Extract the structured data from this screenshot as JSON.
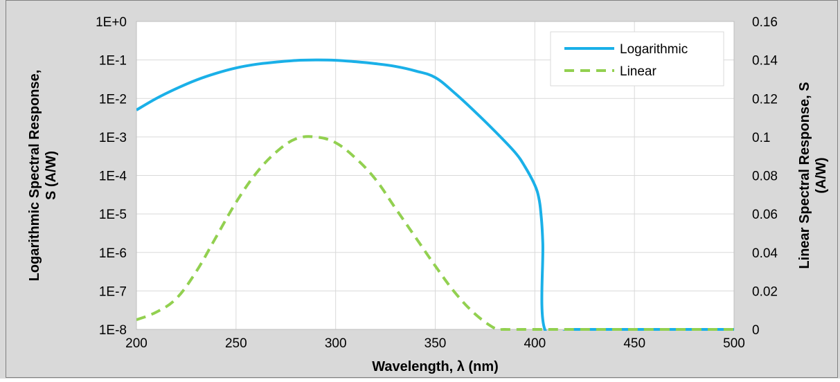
{
  "colors": {
    "outer_background": "#d9d9d9",
    "plot_background": "#ffffff",
    "grid": "#d9d9d9",
    "logarithmic": "#1ab0e8",
    "linear": "#92d050"
  },
  "chart_data": {
    "type": "line",
    "xlabel": "Wavelength, λ (nm)",
    "ylabel_left": [
      "Logarithmic Spectral Response,",
      "S (A/W)"
    ],
    "ylabel_right": [
      "Linear Spectral Response, S",
      "(A/W)"
    ],
    "xlim": [
      200,
      500
    ],
    "x_ticks": [
      200,
      250,
      300,
      350,
      400,
      450,
      500
    ],
    "x_tick_labels": [
      "200",
      "250",
      "300",
      "350",
      "400",
      "450",
      "500"
    ],
    "ylim_left_log10": [
      -8,
      0
    ],
    "y_left_scale": "log",
    "y_left_tick_labels": [
      "1E+0",
      "1E-1",
      "1E-2",
      "1E-3",
      "1E-4",
      "1E-5",
      "1E-6",
      "1E-7",
      "1E-8"
    ],
    "ylim_right": [
      0,
      0.16
    ],
    "y_right_ticks": [
      0.16,
      0.14,
      0.12,
      0.1,
      0.08,
      0.06,
      0.04,
      0.02,
      0
    ],
    "y_right_tick_labels": [
      "0.16",
      "0.14",
      "0.12",
      "0.1",
      "0.08",
      "0.06",
      "0.04",
      "0.02",
      "0"
    ],
    "grid": true,
    "legend_position": "top-right",
    "series": [
      {
        "name": "Logarithmic",
        "axis": "left",
        "style": "solid",
        "points": [
          [
            200,
            0.005
          ],
          [
            210,
            0.01
          ],
          [
            220,
            0.018
          ],
          [
            230,
            0.03
          ],
          [
            240,
            0.045
          ],
          [
            250,
            0.062
          ],
          [
            260,
            0.077
          ],
          [
            270,
            0.088
          ],
          [
            280,
            0.097
          ],
          [
            290,
            0.1
          ],
          [
            300,
            0.098
          ],
          [
            310,
            0.09
          ],
          [
            320,
            0.08
          ],
          [
            330,
            0.068
          ],
          [
            340,
            0.052
          ],
          [
            350,
            0.035
          ],
          [
            360,
            0.0135
          ],
          [
            370,
            0.0045
          ],
          [
            380,
            0.0014
          ],
          [
            390,
            0.0004
          ],
          [
            395,
            0.00017
          ],
          [
            400,
            5.6e-05
          ],
          [
            402,
            2.6e-05
          ],
          [
            403,
            1.1e-05
          ],
          [
            404,
            1.7e-06
          ],
          [
            405,
            1e-08
          ],
          [
            420,
            1e-08
          ],
          [
            450,
            1e-08
          ],
          [
            480,
            1e-08
          ],
          [
            500,
            1e-08
          ]
        ]
      },
      {
        "name": "Linear",
        "axis": "right",
        "style": "dashed",
        "points": [
          [
            200,
            0.005
          ],
          [
            210,
            0.009
          ],
          [
            220,
            0.016
          ],
          [
            230,
            0.03
          ],
          [
            240,
            0.048
          ],
          [
            250,
            0.066
          ],
          [
            260,
            0.081
          ],
          [
            270,
            0.092
          ],
          [
            280,
            0.099
          ],
          [
            290,
            0.1
          ],
          [
            300,
            0.097
          ],
          [
            310,
            0.089
          ],
          [
            320,
            0.078
          ],
          [
            330,
            0.063
          ],
          [
            340,
            0.048
          ],
          [
            350,
            0.033
          ],
          [
            360,
            0.019
          ],
          [
            370,
            0.008
          ],
          [
            380,
            0.0005
          ],
          [
            385,
            0
          ],
          [
            400,
            0
          ],
          [
            450,
            0
          ],
          [
            500,
            0
          ]
        ]
      }
    ]
  }
}
